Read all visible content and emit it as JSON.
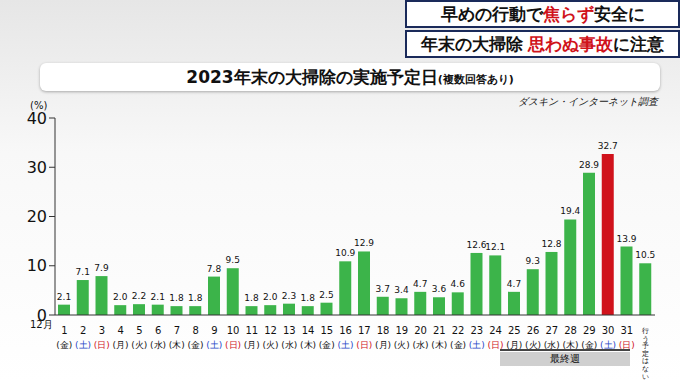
{
  "banner": [
    [
      "早めの行動で",
      "焦らず",
      "安全に"
    ],
    [
      "年末の大掃除 ",
      "思わぬ事故",
      "に注意"
    ]
  ],
  "chart_data": {
    "type": "bar",
    "title": "2023年末の大掃除の実施予定日",
    "subtitle": "(複数回答あり)",
    "source": "ダスキン・インターネット調査",
    "y_label": "(%)",
    "month_label": "12月",
    "bracket_label": "最終週",
    "categories": [
      "1",
      "2",
      "3",
      "4",
      "5",
      "6",
      "7",
      "8",
      "9",
      "10",
      "11",
      "12",
      "13",
      "14",
      "15",
      "16",
      "17",
      "18",
      "19",
      "20",
      "21",
      "22",
      "23",
      "24",
      "25",
      "26",
      "27",
      "28",
      "29",
      "30",
      "31",
      "行う予定はない"
    ],
    "weekdays": [
      "(金)",
      "(土)",
      "(日)",
      "(月)",
      "(火)",
      "(水)",
      "(木)",
      "(金)",
      "(土)",
      "(日)",
      "(月)",
      "(火)",
      "(水)",
      "(木)",
      "(金)",
      "(土)",
      "(日)",
      "(月)",
      "(火)",
      "(水)",
      "(木)",
      "(金)",
      "(土)",
      "(日)",
      "(月)",
      "(火)",
      "(水)",
      "(木)",
      "(金)",
      "(土)",
      "(日)",
      null
    ],
    "values": [
      2.1,
      7.1,
      7.9,
      2.0,
      2.2,
      2.1,
      1.8,
      1.8,
      7.8,
      9.5,
      1.8,
      2.0,
      2.3,
      1.8,
      2.5,
      10.9,
      12.9,
      3.7,
      3.4,
      4.7,
      3.6,
      4.6,
      12.6,
      12.1,
      4.7,
      9.3,
      12.8,
      19.4,
      28.9,
      32.7,
      13.9,
      10.5
    ],
    "value_labels": [
      "2.1",
      "7.1",
      "7.9",
      "2.0",
      "2.2",
      "2.1",
      "1.8",
      "1.8",
      "7.8",
      "9.5",
      "1.8",
      "2.0",
      "2.3",
      "1.8",
      "2.5",
      "10.9",
      "12.9",
      "3.7",
      "3.4",
      "4.7",
      "3.6",
      "4.6",
      "12.6",
      "12.1",
      "4.7",
      "9.3",
      "12.8",
      "19.4",
      "28.9",
      "32.7",
      "13.9",
      "10.5"
    ],
    "colors": [
      "#3cb44a",
      "#3cb44a",
      "#3cb44a",
      "#3cb44a",
      "#3cb44a",
      "#3cb44a",
      "#3cb44a",
      "#3cb44a",
      "#3cb44a",
      "#3cb44a",
      "#3cb44a",
      "#3cb44a",
      "#3cb44a",
      "#3cb44a",
      "#3cb44a",
      "#3cb44a",
      "#3cb44a",
      "#3cb44a",
      "#3cb44a",
      "#3cb44a",
      "#3cb44a",
      "#3cb44a",
      "#3cb44a",
      "#3cb44a",
      "#3cb44a",
      "#3cb44a",
      "#3cb44a",
      "#3cb44a",
      "#3cb44a",
      "#d0121b",
      "#3cb44a",
      "#3cb44a"
    ],
    "ylim": [
      0,
      40
    ],
    "yticks": [
      0,
      10,
      20,
      30,
      40
    ],
    "grid": false,
    "data_labels": true
  }
}
